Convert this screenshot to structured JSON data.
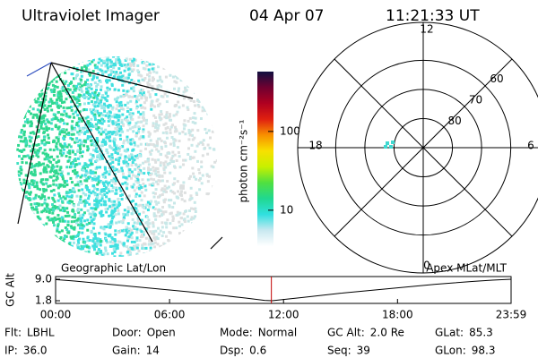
{
  "header": {
    "instrument": "Ultraviolet Imager",
    "date": "04 Apr 07",
    "time": "11:21:33 UT"
  },
  "colorbar": {
    "label": "photon cm⁻²s⁻¹",
    "log": true,
    "clim": [
      3.5,
      575
    ],
    "ticks": [
      10,
      100
    ],
    "colors": [
      "#ffffff",
      "#c8e8f0",
      "#30e0e0",
      "#20d890",
      "#50e040",
      "#c8f000",
      "#f8e000",
      "#f89000",
      "#e02010",
      "#b00020",
      "#700030",
      "#101040"
    ]
  },
  "polar": {
    "rlim": [
      90,
      47
    ],
    "lat_rings": [
      {
        "value": 80,
        "label": "80"
      },
      {
        "value": 70,
        "label": "70"
      },
      {
        "value": 60,
        "label": "60"
      }
    ],
    "hours": [
      12,
      18,
      6,
      0
    ]
  },
  "altitude": {
    "axis_label": "GC Alt",
    "left_label": "Geographic Lat/Lon",
    "right_label": "Apex MLat/MLT",
    "xlim": [
      0,
      23.98
    ],
    "ylim": [
      1.8,
      9.0
    ],
    "yticks": [
      {
        "value": 9.0,
        "label": "9.0"
      },
      {
        "value": 1.8,
        "label": "1.8"
      }
    ],
    "xticks": [
      {
        "value": 0,
        "label": "00:00"
      },
      {
        "value": 6,
        "label": "06:00"
      },
      {
        "value": 12,
        "label": "12:00"
      },
      {
        "value": 18,
        "label": "18:00"
      },
      {
        "value": 23.98,
        "label": "23:59"
      }
    ],
    "x": [
      0,
      1,
      2,
      3,
      4,
      5,
      6,
      7,
      8,
      9,
      10,
      11,
      11.4,
      12,
      13,
      14,
      15,
      16,
      17,
      18,
      19,
      20,
      21,
      22,
      23,
      23.98
    ],
    "values": [
      8.9,
      8.4,
      7.8,
      7.2,
      6.6,
      6.0,
      5.4,
      4.8,
      4.1,
      3.4,
      2.7,
      1.9,
      1.8,
      2.2,
      2.9,
      3.6,
      4.3,
      4.9,
      5.5,
      6.1,
      6.7,
      7.3,
      7.8,
      8.3,
      8.7,
      9.0
    ],
    "marker": 11.36,
    "marker_color": "#c00000"
  },
  "footer": [
    [
      {
        "label": "Flt:",
        "value": "LBHL"
      },
      {
        "label": "Door:",
        "value": "Open"
      },
      {
        "label": "Mode:",
        "value": "Normal"
      },
      {
        "label": "GC Alt:",
        "value": "2.0 Re"
      },
      {
        "label": "GLat:",
        "value": "85.3"
      }
    ],
    [
      {
        "label": "IP:",
        "value": "36.0"
      },
      {
        "label": "Gain:",
        "value": "14"
      },
      {
        "label": "Dsp:",
        "value": "0.6"
      },
      {
        "label": "Seq:",
        "value": "39"
      },
      {
        "label": "GLon:",
        "value": "98.3"
      }
    ]
  ]
}
